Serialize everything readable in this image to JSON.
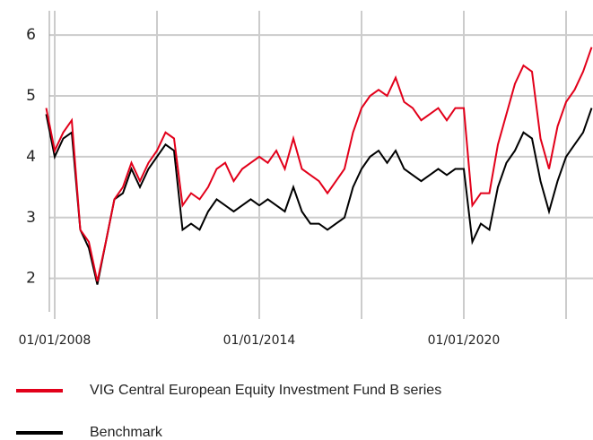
{
  "chart_data": {
    "type": "line",
    "x": [
      "10/01/2007",
      "01/01/2008",
      "04/01/2008",
      "07/01/2008",
      "10/01/2008",
      "01/01/2009",
      "04/01/2009",
      "07/01/2009",
      "10/01/2009",
      "01/01/2010",
      "04/01/2010",
      "07/01/2010",
      "10/01/2010",
      "01/01/2011",
      "04/01/2011",
      "07/01/2011",
      "10/01/2011",
      "01/01/2012",
      "04/01/2012",
      "07/01/2012",
      "10/01/2012",
      "01/01/2013",
      "04/01/2013",
      "07/01/2013",
      "10/01/2013",
      "01/01/2014",
      "04/01/2014",
      "07/01/2014",
      "10/01/2014",
      "01/01/2015",
      "04/01/2015",
      "07/01/2015",
      "10/01/2015",
      "01/01/2016",
      "04/01/2016",
      "07/01/2016",
      "10/01/2016",
      "01/01/2017",
      "04/01/2017",
      "07/01/2017",
      "10/01/2017",
      "01/01/2018",
      "04/01/2018",
      "07/01/2018",
      "10/01/2018",
      "01/01/2019",
      "04/01/2019",
      "07/01/2019",
      "10/01/2019",
      "01/01/2020",
      "04/01/2020",
      "07/01/2020",
      "10/01/2020",
      "01/01/2021",
      "04/01/2021",
      "07/01/2021",
      "10/01/2021",
      "01/01/2022",
      "04/01/2022",
      "07/01/2022",
      "10/01/2022",
      "01/01/2023",
      "04/01/2023",
      "07/01/2023",
      "10/01/2023"
    ],
    "series": [
      {
        "name": "VIG Central European Equity Investment Fund B series",
        "color": "#e2001a",
        "values": [
          4.8,
          4.1,
          4.4,
          4.6,
          2.8,
          2.6,
          1.95,
          2.6,
          3.3,
          3.5,
          3.9,
          3.6,
          3.9,
          4.1,
          4.4,
          4.3,
          3.2,
          3.4,
          3.3,
          3.5,
          3.8,
          3.9,
          3.6,
          3.8,
          3.9,
          4.0,
          3.9,
          4.1,
          3.8,
          4.3,
          3.8,
          3.7,
          3.6,
          3.4,
          3.6,
          3.8,
          4.4,
          4.8,
          5.0,
          5.1,
          5.0,
          5.3,
          4.9,
          4.8,
          4.6,
          4.7,
          4.8,
          4.6,
          4.8,
          4.8,
          3.2,
          3.4,
          3.4,
          4.2,
          4.7,
          5.2,
          5.5,
          5.4,
          4.3,
          3.8,
          4.5,
          4.9,
          5.1,
          5.4,
          5.8
        ]
      },
      {
        "name": "Benchmark",
        "color": "#000000",
        "values": [
          4.7,
          4.0,
          4.3,
          4.4,
          2.8,
          2.5,
          1.9,
          2.6,
          3.3,
          3.4,
          3.8,
          3.5,
          3.8,
          4.0,
          4.2,
          4.1,
          2.8,
          2.9,
          2.8,
          3.1,
          3.3,
          3.2,
          3.1,
          3.2,
          3.3,
          3.2,
          3.3,
          3.2,
          3.1,
          3.5,
          3.1,
          2.9,
          2.9,
          2.8,
          2.9,
          3.0,
          3.5,
          3.8,
          4.0,
          4.1,
          3.9,
          4.1,
          3.8,
          3.7,
          3.6,
          3.7,
          3.8,
          3.7,
          3.8,
          3.8,
          2.6,
          2.9,
          2.8,
          3.5,
          3.9,
          4.1,
          4.4,
          4.3,
          3.6,
          3.1,
          3.6,
          4.0,
          4.2,
          4.4,
          4.8
        ]
      }
    ],
    "xlim": [
      "10/01/2007",
      "10/01/2023"
    ],
    "xticks": [
      {
        "value": "01/01/2008",
        "label": "01/01/2008"
      },
      {
        "value": "01/01/2011"
      },
      {
        "value": "01/01/2014",
        "label": "01/01/2014"
      },
      {
        "value": "01/01/2017"
      },
      {
        "value": "01/01/2020",
        "label": "01/01/2020"
      },
      {
        "value": "01/01/2023"
      }
    ],
    "ylim": [
      1.45,
      6.4
    ],
    "yticks": [
      2,
      3,
      4,
      5,
      6
    ],
    "grid": true
  }
}
